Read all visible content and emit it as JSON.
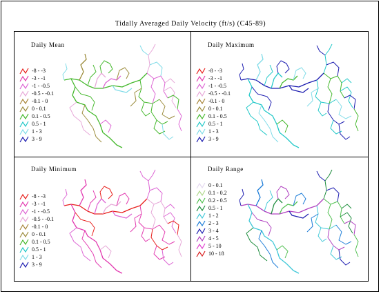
{
  "title": "Tidally Averaged Daily Velocity (ft/s) (C45-89)",
  "velocity_legend": [
    {
      "label": "-8 - -3",
      "color": "#e8201c"
    },
    {
      "label": "-3 - -1",
      "color": "#e23ab0"
    },
    {
      "label": "-1 - -0.5",
      "color": "#dd66d4"
    },
    {
      "label": "-0.5 - -0.1",
      "color": "#e7a8d8"
    },
    {
      "label": "-0.1 - 0",
      "color": "#a8863a"
    },
    {
      "label": "0 - 0.1",
      "color": "#9c8c3c"
    },
    {
      "label": "0.1 - 0.5",
      "color": "#44b82c"
    },
    {
      "label": "0.5 - 1",
      "color": "#22c8c8"
    },
    {
      "label": "1 - 3",
      "color": "#80dce8"
    },
    {
      "label": "3 - 9",
      "color": "#1c1cb0"
    }
  ],
  "range_legend": [
    {
      "label": "0 - 0.1",
      "color": "#e4d8f0"
    },
    {
      "label": "0.1 - 0.2",
      "color": "#b0d88c"
    },
    {
      "label": "0.2 - 0.5",
      "color": "#50c050"
    },
    {
      "label": "0.5 - 1",
      "color": "#1c8c3c"
    },
    {
      "label": "1 - 2",
      "color": "#40c8d8"
    },
    {
      "label": "2 - 3",
      "color": "#1c7cd8"
    },
    {
      "label": "3 - 4",
      "color": "#1c1cb0"
    },
    {
      "label": "4 - 5",
      "color": "#b040c0"
    },
    {
      "label": "5 - 10",
      "color": "#e040d0"
    },
    {
      "label": "10 - 18",
      "color": "#d81c1c"
    }
  ],
  "panels": [
    {
      "title": "Daily Mean",
      "legend": "velocity",
      "network_colors": [
        "#44b82c",
        "#9c8c3c",
        "#e7a8d8",
        "#dd66d4",
        "#80dce8",
        "#44b82c"
      ]
    },
    {
      "title": "Daily Maximum",
      "legend": "velocity",
      "network_colors": [
        "#1c1cb0",
        "#80dce8",
        "#22c8c8",
        "#44b82c",
        "#1c1cb0",
        "#22c8c8"
      ]
    },
    {
      "title": "Daily Minimum",
      "legend": "velocity",
      "network_colors": [
        "#e8201c",
        "#e23ab0",
        "#dd66d4",
        "#e7a8d8",
        "#dd66d4",
        "#e23ab0"
      ]
    },
    {
      "title": "Daily Range",
      "legend": "range",
      "network_colors": [
        "#b040c0",
        "#1c7cd8",
        "#1c8c3c",
        "#50c050",
        "#1c1cb0",
        "#40c8d8"
      ]
    }
  ]
}
